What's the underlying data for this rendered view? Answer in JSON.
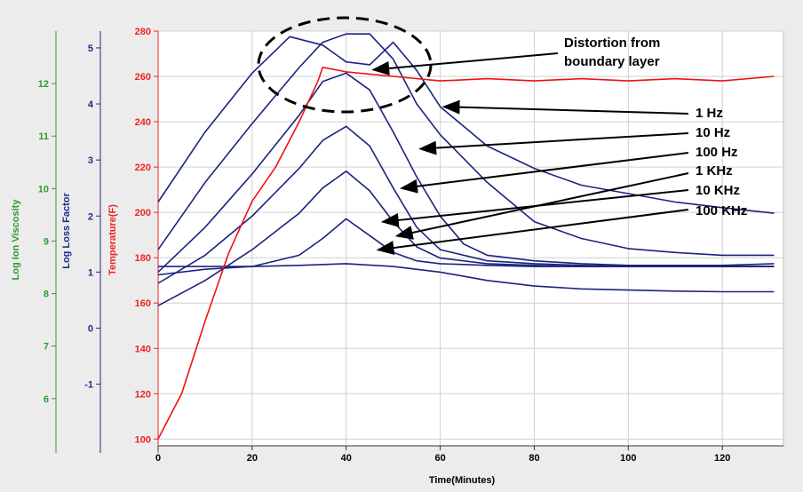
{
  "colors": {
    "background": "#ececec",
    "plot_background": "#ffffff",
    "grid": "#d0d0d0",
    "viscosity_axis": "#2f9a2f",
    "loss_axis": "#1f2a8a",
    "temperature_axis": "#ee2222",
    "dielectric_series": "#1a237e",
    "temperature_series": "#ee1111",
    "annotation": "#000000"
  },
  "chart_data": {
    "type": "line",
    "xlabel": "Time(Minutes)",
    "xlim": [
      0,
      133
    ],
    "x_ticks": [
      0,
      20,
      40,
      60,
      80,
      100,
      120
    ],
    "grid": true,
    "axes": {
      "viscosity": {
        "label": "Log Ion Viscosity",
        "ylim": [
          5.1,
          13
        ],
        "ticks": [
          6,
          7,
          8,
          9,
          10,
          11,
          12
        ]
      },
      "loss": {
        "label": "Log Loss Factor",
        "ylim": [
          -2.1,
          5.3
        ],
        "ticks": [
          -1,
          0,
          1,
          2,
          3,
          4,
          5
        ]
      },
      "temperature": {
        "label": "Temperature(F)",
        "ylim": [
          97,
          280
        ],
        "ticks": [
          100,
          120,
          140,
          160,
          180,
          200,
          220,
          240,
          260,
          280
        ]
      }
    },
    "series": [
      {
        "name": "1 Hz",
        "axis": "loss",
        "x": [
          0,
          10,
          20,
          28,
          35,
          40,
          45,
          50,
          55,
          60,
          70,
          80,
          90,
          100,
          110,
          120,
          131
        ],
        "y": [
          2.25,
          3.5,
          4.55,
          5.2,
          5.05,
          4.75,
          4.7,
          5.1,
          4.6,
          3.95,
          3.25,
          2.85,
          2.55,
          2.4,
          2.25,
          2.15,
          2.05
        ]
      },
      {
        "name": "10 Hz",
        "axis": "loss",
        "x": [
          0,
          10,
          20,
          30,
          35,
          40,
          45,
          50,
          55,
          60,
          70,
          80,
          90,
          100,
          110,
          120,
          131
        ],
        "y": [
          1.4,
          2.6,
          3.65,
          4.65,
          5.1,
          5.25,
          5.25,
          4.8,
          4.0,
          3.45,
          2.6,
          1.9,
          1.6,
          1.42,
          1.35,
          1.3,
          1.3
        ]
      },
      {
        "name": "100 Hz",
        "axis": "loss",
        "x": [
          0,
          10,
          20,
          30,
          35,
          40,
          45,
          50,
          55,
          60,
          65,
          70,
          80,
          90,
          100,
          110,
          120,
          131
        ],
        "y": [
          1.0,
          1.8,
          2.75,
          3.8,
          4.4,
          4.55,
          4.25,
          3.5,
          2.7,
          2.0,
          1.5,
          1.3,
          1.2,
          1.15,
          1.12,
          1.12,
          1.12,
          1.15
        ]
      },
      {
        "name": "1 KHz",
        "axis": "loss",
        "x": [
          0,
          10,
          20,
          30,
          35,
          40,
          45,
          50,
          55,
          60,
          70,
          80,
          90,
          100,
          120,
          131
        ],
        "y": [
          0.8,
          1.3,
          2.0,
          2.85,
          3.35,
          3.6,
          3.25,
          2.5,
          1.8,
          1.4,
          1.2,
          1.15,
          1.12,
          1.1,
          1.1,
          1.1
        ]
      },
      {
        "name": "10 KHz",
        "axis": "loss",
        "x": [
          0,
          10,
          20,
          30,
          35,
          40,
          45,
          50,
          55,
          60,
          70,
          80,
          90,
          100,
          120,
          131
        ],
        "y": [
          0.4,
          0.85,
          1.4,
          2.05,
          2.5,
          2.8,
          2.45,
          1.9,
          1.45,
          1.25,
          1.15,
          1.12,
          1.1,
          1.1,
          1.1,
          1.1
        ]
      },
      {
        "name": "100 KHz",
        "axis": "loss",
        "x": [
          0,
          10,
          20,
          30,
          35,
          40,
          45,
          50,
          55,
          60,
          70,
          80,
          90,
          100,
          120,
          131
        ],
        "y": [
          0.95,
          1.05,
          1.1,
          1.3,
          1.6,
          1.95,
          1.65,
          1.35,
          1.2,
          1.15,
          1.12,
          1.1,
          1.1,
          1.1,
          1.1,
          1.1
        ]
      },
      {
        "name": "",
        "axis": "loss",
        "x": [
          0,
          10,
          20,
          30,
          40,
          50,
          60,
          70,
          80,
          90,
          100,
          110,
          120,
          131
        ],
        "y": [
          1.1,
          1.1,
          1.1,
          1.12,
          1.15,
          1.1,
          1.0,
          0.85,
          0.75,
          0.7,
          0.68,
          0.66,
          0.65,
          0.65
        ]
      },
      {
        "name": "",
        "axis": "temperature",
        "x": [
          0,
          5,
          10,
          15,
          20,
          25,
          30,
          34,
          35,
          40,
          50,
          60,
          70,
          80,
          90,
          100,
          110,
          120,
          131
        ],
        "y": [
          100,
          120,
          152,
          182,
          205,
          220,
          240,
          258,
          264,
          262,
          260,
          258,
          259,
          258,
          259,
          258,
          259,
          258,
          260
        ]
      }
    ],
    "annotations": [
      {
        "text": "Distortion from",
        "target": {
          "x": 45,
          "axis": "temperature",
          "y": 263
        }
      },
      {
        "text": "boundary layer",
        "target": null
      },
      {
        "text": "1 Hz",
        "target": {
          "x": 60,
          "axis": "loss",
          "y": 3.95
        }
      },
      {
        "text": "10 Hz",
        "target": {
          "x": 55,
          "axis": "loss",
          "y": 3.2
        }
      },
      {
        "text": "100 Hz",
        "target": {
          "x": 51,
          "axis": "loss",
          "y": 2.5
        }
      },
      {
        "text": "1 KHz",
        "target": {
          "x": 50,
          "axis": "loss",
          "y": 1.65
        }
      },
      {
        "text": "10 KHz",
        "target": {
          "x": 47,
          "axis": "loss",
          "y": 1.9
        }
      },
      {
        "text": "100 KHz",
        "target": {
          "x": 46,
          "axis": "loss",
          "y": 1.4
        }
      }
    ]
  }
}
